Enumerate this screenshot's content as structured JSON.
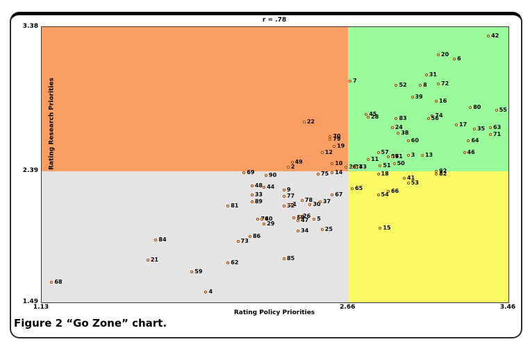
{
  "figure": {
    "caption": "Figure 2 “Go Zone” chart."
  },
  "chart_data": {
    "type": "scatter",
    "title": "r = .78",
    "xlabel": "Rating Policy Priorities",
    "ylabel": "Rating Research Priorities",
    "xlim": [
      1.13,
      3.46
    ],
    "ylim": [
      1.49,
      3.38
    ],
    "x_split": 2.66,
    "y_split": 2.39,
    "x_ticks": [
      {
        "v": 1.13,
        "label": "1.13"
      },
      {
        "v": 2.66,
        "label": "2.66"
      },
      {
        "v": 3.46,
        "label": "3.46"
      }
    ],
    "y_ticks": [
      {
        "v": 1.49,
        "label": "1.49"
      },
      {
        "v": 2.39,
        "label": "2.39"
      },
      {
        "v": 3.38,
        "label": "3.38"
      }
    ],
    "legend": "none",
    "grid": false,
    "quadrant_colors": {
      "top_left": "#FB9E64",
      "top_right": "#9AFB9A",
      "bottom_left": "#E4E4E4",
      "bottom_right": "#FAFA64"
    },
    "marker": {
      "fill": "#FFFFB0",
      "stroke": "#A03800"
    },
    "points": [
      {
        "id": "42",
        "x": 3.36,
        "y": 3.32
      },
      {
        "id": "20",
        "x": 3.11,
        "y": 3.19
      },
      {
        "id": "6",
        "x": 3.19,
        "y": 3.16
      },
      {
        "id": "31",
        "x": 3.05,
        "y": 3.05
      },
      {
        "id": "72",
        "x": 3.11,
        "y": 2.99
      },
      {
        "id": "8",
        "x": 3.02,
        "y": 2.98
      },
      {
        "id": "7",
        "x": 2.67,
        "y": 3.01
      },
      {
        "id": "52",
        "x": 2.9,
        "y": 2.98
      },
      {
        "id": "39",
        "x": 2.98,
        "y": 2.9
      },
      {
        "id": "16",
        "x": 3.1,
        "y": 2.87
      },
      {
        "id": "80",
        "x": 3.27,
        "y": 2.83
      },
      {
        "id": "55",
        "x": 3.4,
        "y": 2.81
      },
      {
        "id": "45",
        "x": 2.75,
        "y": 2.78
      },
      {
        "id": "28",
        "x": 2.76,
        "y": 2.76
      },
      {
        "id": "83",
        "x": 2.9,
        "y": 2.75
      },
      {
        "id": "74",
        "x": 3.08,
        "y": 2.77
      },
      {
        "id": "56",
        "x": 3.06,
        "y": 2.75
      },
      {
        "id": "24",
        "x": 2.88,
        "y": 2.69
      },
      {
        "id": "38",
        "x": 2.91,
        "y": 2.65
      },
      {
        "id": "17",
        "x": 3.2,
        "y": 2.71
      },
      {
        "id": "63",
        "x": 3.37,
        "y": 2.69
      },
      {
        "id": "35",
        "x": 3.29,
        "y": 2.68
      },
      {
        "id": "71",
        "x": 3.37,
        "y": 2.64
      },
      {
        "id": "60",
        "x": 2.96,
        "y": 2.6
      },
      {
        "id": "64",
        "x": 3.26,
        "y": 2.6
      },
      {
        "id": "46",
        "x": 3.24,
        "y": 2.52
      },
      {
        "id": "22",
        "x": 2.44,
        "y": 2.73
      },
      {
        "id": "70",
        "x": 2.57,
        "y": 2.63
      },
      {
        "id": "79",
        "x": 2.57,
        "y": 2.61
      },
      {
        "id": "19",
        "x": 2.59,
        "y": 2.56
      },
      {
        "id": "12",
        "x": 2.53,
        "y": 2.52
      },
      {
        "id": "57",
        "x": 2.81,
        "y": 2.52
      },
      {
        "id": "87",
        "x": 2.86,
        "y": 2.49
      },
      {
        "id": "61",
        "x": 2.88,
        "y": 2.49
      },
      {
        "id": "3",
        "x": 2.96,
        "y": 2.5
      },
      {
        "id": "13",
        "x": 3.03,
        "y": 2.5
      },
      {
        "id": "11",
        "x": 2.76,
        "y": 2.47
      },
      {
        "id": "49",
        "x": 2.38,
        "y": 2.45
      },
      {
        "id": "2",
        "x": 2.36,
        "y": 2.42
      },
      {
        "id": "10",
        "x": 2.58,
        "y": 2.44
      },
      {
        "id": "36",
        "x": 2.65,
        "y": 2.42
      },
      {
        "id": "27",
        "x": 2.68,
        "y": 2.42
      },
      {
        "id": "43",
        "x": 2.7,
        "y": 2.42
      },
      {
        "id": "51",
        "x": 2.82,
        "y": 2.43
      },
      {
        "id": "50",
        "x": 2.89,
        "y": 2.44
      },
      {
        "id": "69",
        "x": 2.14,
        "y": 2.38
      },
      {
        "id": "75",
        "x": 2.51,
        "y": 2.37
      },
      {
        "id": "14",
        "x": 2.58,
        "y": 2.38
      },
      {
        "id": "90",
        "x": 2.25,
        "y": 2.36
      },
      {
        "id": "92",
        "x": 3.1,
        "y": 2.39
      },
      {
        "id": "82",
        "x": 3.1,
        "y": 2.37
      },
      {
        "id": "18",
        "x": 2.81,
        "y": 2.37
      },
      {
        "id": "41",
        "x": 2.94,
        "y": 2.34
      },
      {
        "id": "53",
        "x": 2.96,
        "y": 2.31
      },
      {
        "id": "65",
        "x": 2.68,
        "y": 2.27
      },
      {
        "id": "66",
        "x": 2.86,
        "y": 2.25
      },
      {
        "id": "54",
        "x": 2.81,
        "y": 2.23
      },
      {
        "id": "15",
        "x": 2.82,
        "y": 2.0
      },
      {
        "id": "48",
        "x": 2.18,
        "y": 2.29
      },
      {
        "id": "44",
        "x": 2.24,
        "y": 2.28
      },
      {
        "id": "33",
        "x": 2.18,
        "y": 2.23
      },
      {
        "id": "9",
        "x": 2.34,
        "y": 2.26
      },
      {
        "id": "77",
        "x": 2.34,
        "y": 2.22
      },
      {
        "id": "67",
        "x": 2.58,
        "y": 2.23
      },
      {
        "id": "89",
        "x": 2.18,
        "y": 2.18
      },
      {
        "id": "81",
        "x": 2.06,
        "y": 2.15
      },
      {
        "id": "32",
        "x": 2.34,
        "y": 2.15
      },
      {
        "id": "1",
        "x": 2.37,
        "y": 2.16
      },
      {
        "id": "78",
        "x": 2.43,
        "y": 2.19
      },
      {
        "id": "30",
        "x": 2.47,
        "y": 2.16
      },
      {
        "id": "37",
        "x": 2.52,
        "y": 2.18
      },
      {
        "id": "76",
        "x": 2.21,
        "y": 2.06
      },
      {
        "id": "40",
        "x": 2.23,
        "y": 2.06
      },
      {
        "id": "29",
        "x": 2.24,
        "y": 2.03
      },
      {
        "id": "88",
        "x": 2.39,
        "y": 2.07
      },
      {
        "id": "26",
        "x": 2.42,
        "y": 2.08
      },
      {
        "id": "47",
        "x": 2.41,
        "y": 2.05
      },
      {
        "id": "5",
        "x": 2.49,
        "y": 2.06
      },
      {
        "id": "34",
        "x": 2.41,
        "y": 1.98
      },
      {
        "id": "25",
        "x": 2.53,
        "y": 1.99
      },
      {
        "id": "86",
        "x": 2.17,
        "y": 1.94
      },
      {
        "id": "73",
        "x": 2.11,
        "y": 1.91
      },
      {
        "id": "84",
        "x": 1.7,
        "y": 1.92
      },
      {
        "id": "21",
        "x": 1.66,
        "y": 1.78
      },
      {
        "id": "62",
        "x": 2.06,
        "y": 1.76
      },
      {
        "id": "59",
        "x": 1.88,
        "y": 1.7
      },
      {
        "id": "85",
        "x": 2.34,
        "y": 1.79
      },
      {
        "id": "68",
        "x": 1.18,
        "y": 1.63
      },
      {
        "id": "4",
        "x": 1.95,
        "y": 1.56
      }
    ]
  }
}
